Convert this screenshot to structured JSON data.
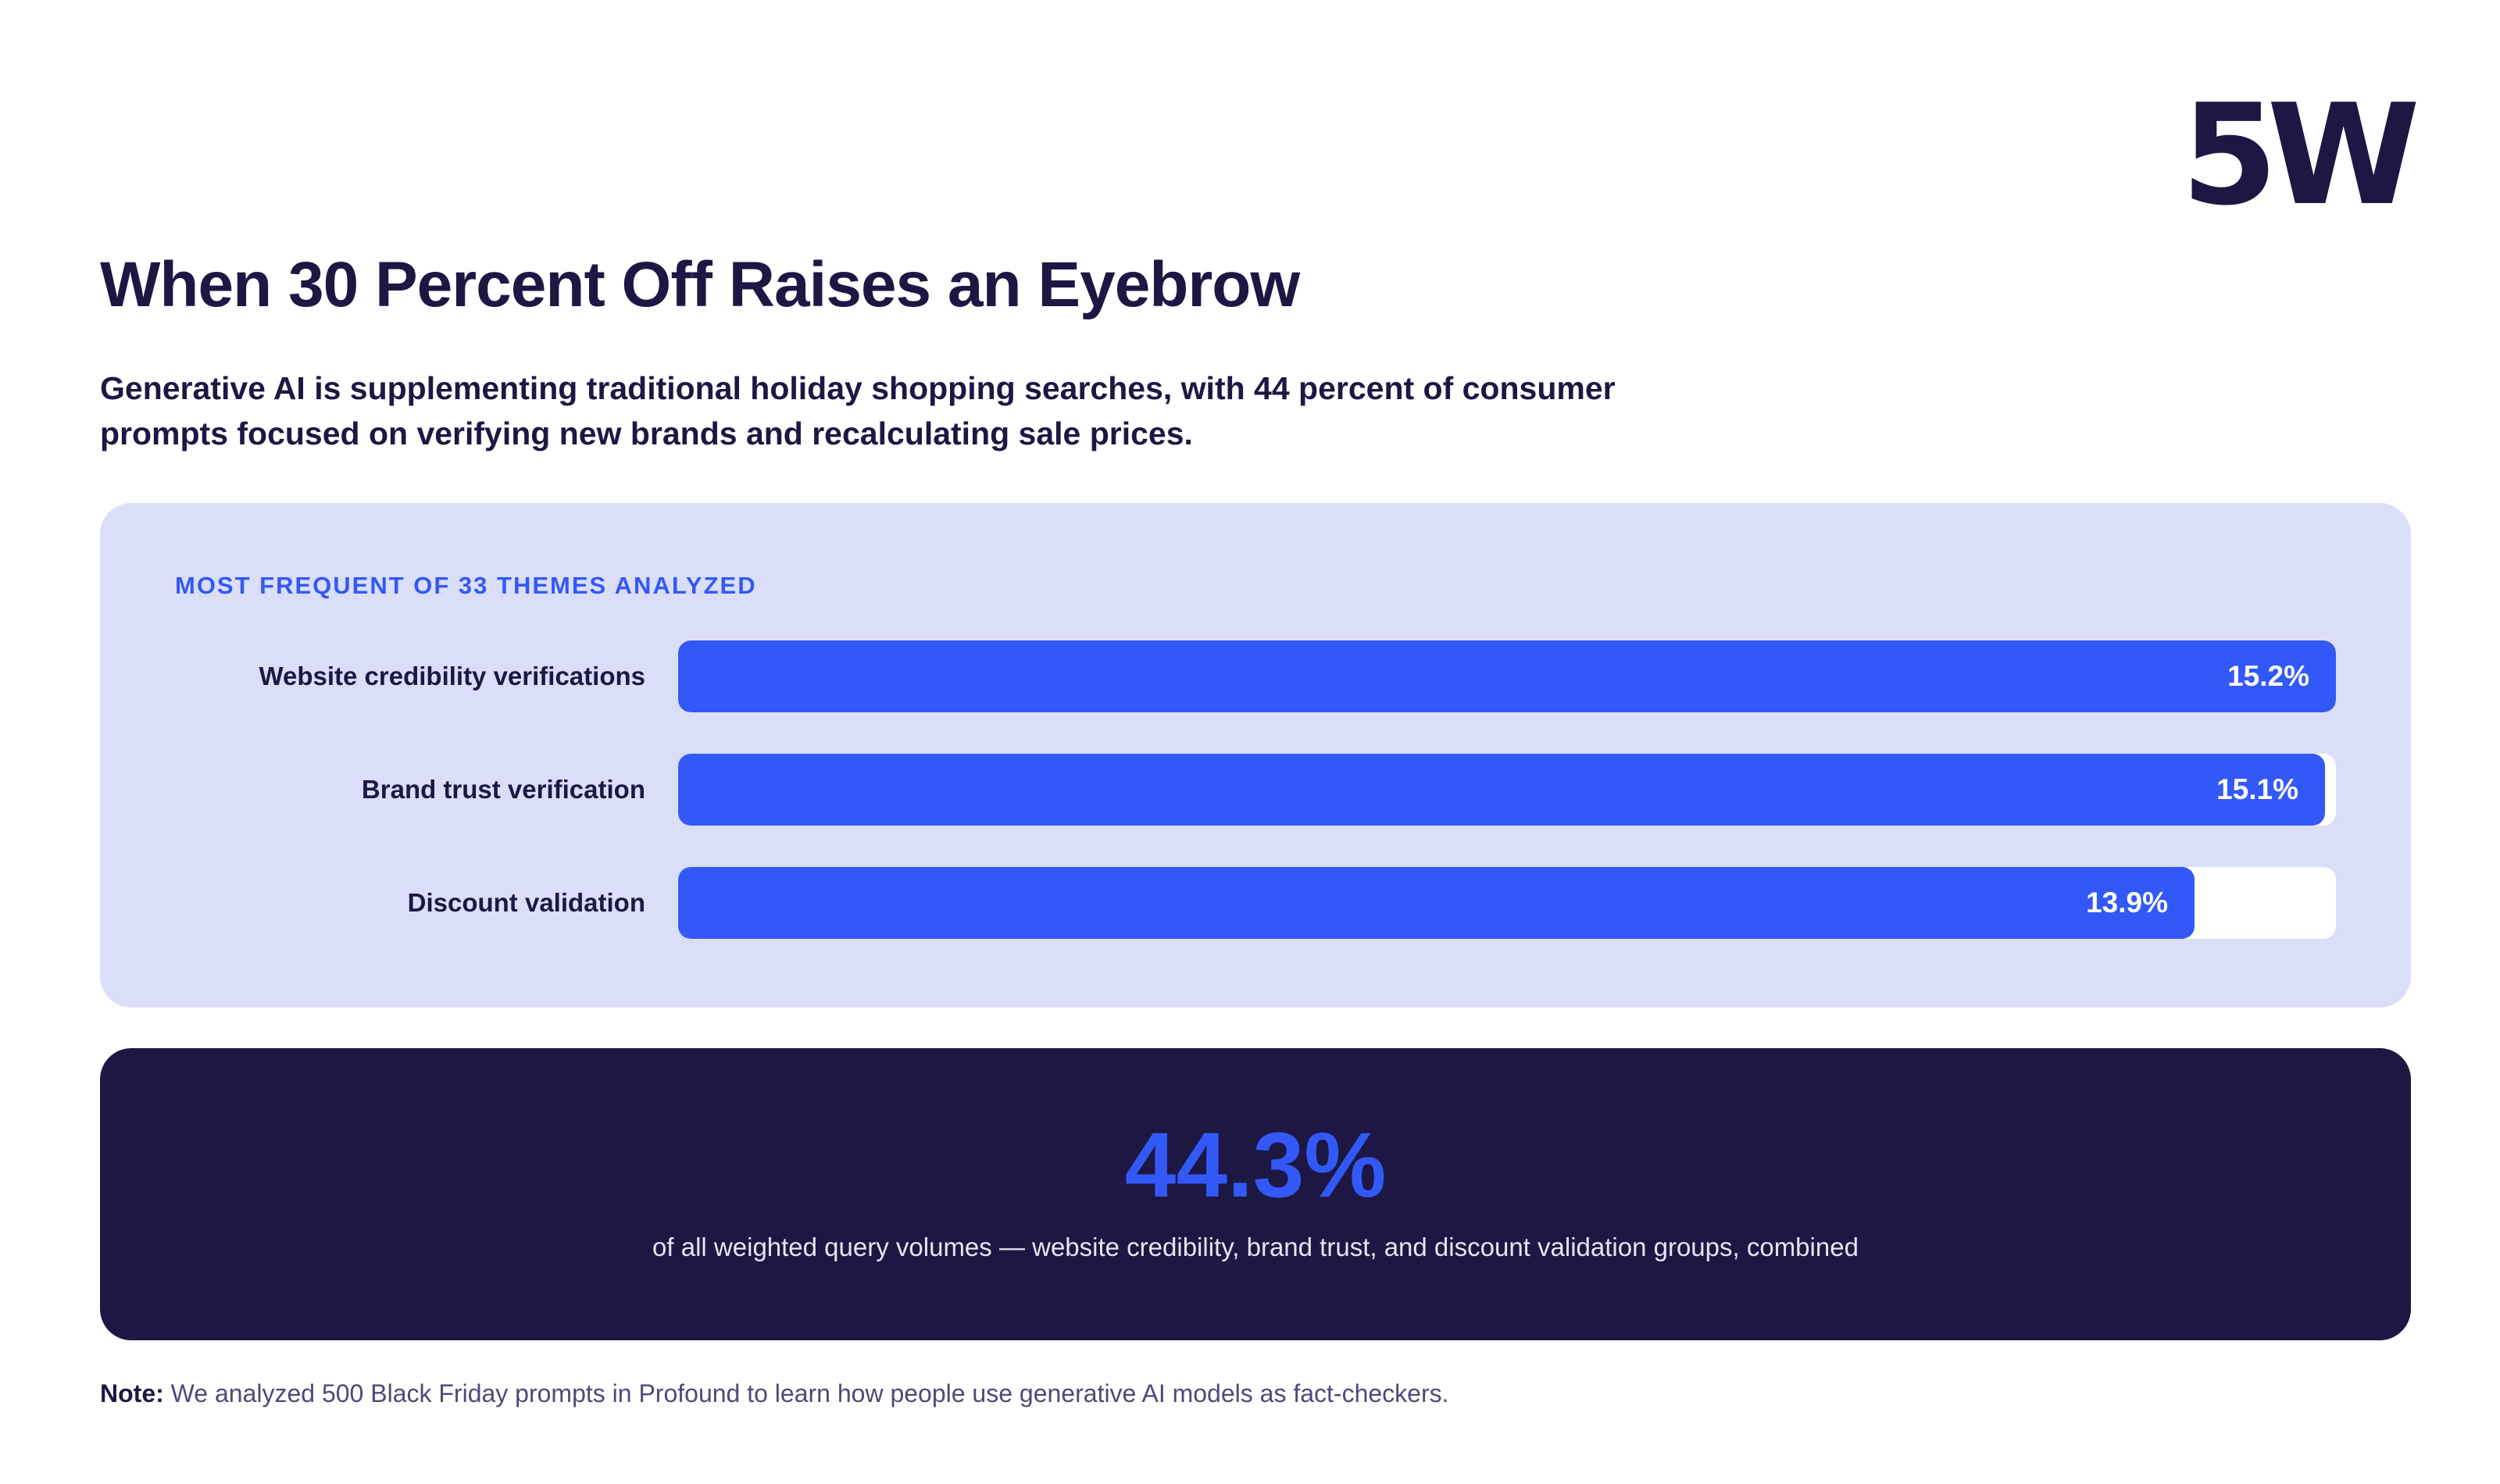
{
  "brand": {
    "logo_text": "5W"
  },
  "header": {
    "title": "When 30 Percent Off Raises an Eyebrow",
    "subtitle": "Generative AI is supplementing traditional holiday shopping searches, with 44 percent of consumer prompts focused on verifying new brands and recalculating sale prices."
  },
  "chart_data": {
    "type": "bar",
    "orientation": "horizontal",
    "title": "MOST FREQUENT OF 33 THEMES ANALYZED",
    "categories": [
      "Website credibility verifications",
      "Brand trust verification",
      "Discount validation"
    ],
    "values": [
      15.2,
      15.1,
      13.9
    ],
    "value_labels": [
      "15.2%",
      "15.1%",
      "13.9%"
    ],
    "xlim": [
      0,
      15.2
    ],
    "grid": false,
    "colors": {
      "bar": "#3259f8",
      "track": "#ffffff",
      "panel": "#dbdef8"
    }
  },
  "summary": {
    "value": "44.3%",
    "caption": "of all weighted query volumes — website credibility, brand trust, and discount validation groups, combined"
  },
  "note": {
    "label": "Note:",
    "text": "We analyzed 500 Black Friday prompts in Profound to learn how people use generative AI models as fact-checkers."
  },
  "colors": {
    "navy": "#1d1744",
    "accent": "#3259f8"
  }
}
